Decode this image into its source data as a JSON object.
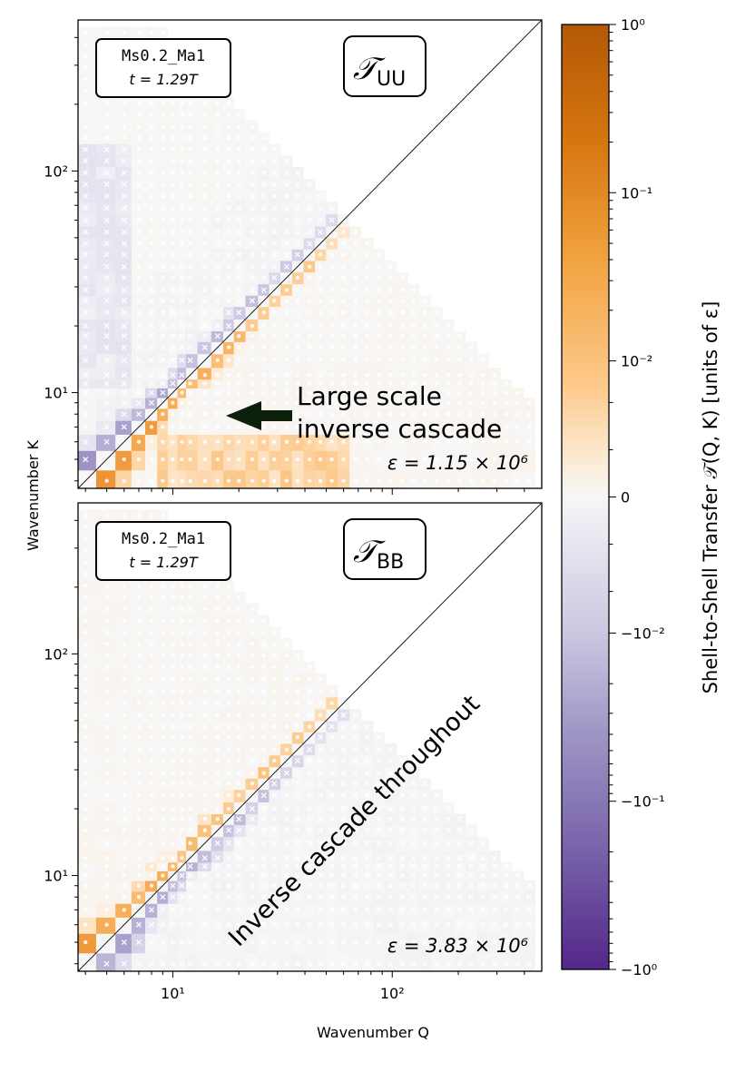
{
  "figure": {
    "colorbar_label": "Shell-to-Shell Transfer 𝒯(Q, K)  [units of ε]",
    "colorbar_ticks": [
      "10⁰",
      "10⁻¹",
      "10⁻²",
      "0",
      "−10⁻²",
      "−10⁻¹",
      "−10⁰"
    ],
    "colors": {
      "positive": "#b35806",
      "negative": "#542788",
      "neutral": "#f7f7f7"
    },
    "xlabel": "Wavenumber Q",
    "ylabel": "Wavenumber K"
  },
  "chart_data": [
    {
      "type": "heatmap",
      "title": "𝒯UU",
      "title_main": "𝒯",
      "title_sub": "UU",
      "info_sim": "Ms0.2_Ma1",
      "info_time": "t = 1.29T",
      "epsilon_label": "ε = 1.15 × 10⁶",
      "epsilon": 1150000,
      "annotation_line1": "Large scale",
      "annotation_line2": "inverse cascade",
      "xlabel": "",
      "ylabel": "Wavenumber K",
      "xscale": "log",
      "yscale": "log",
      "xlim": [
        3.7,
        480
      ],
      "ylim": [
        3.7,
        480
      ],
      "x_tick_labels": [
        "10¹",
        "10²"
      ],
      "y_tick_labels": [
        "10¹",
        "10²"
      ],
      "bins": [
        4,
        5,
        6,
        7,
        8,
        9,
        10,
        11,
        12,
        14,
        16,
        18,
        20,
        23,
        26,
        29,
        33,
        37,
        42,
        47,
        53,
        60,
        68,
        77,
        87,
        98,
        111,
        125,
        141,
        159,
        180,
        203,
        229,
        259,
        292,
        330,
        373,
        421
      ],
      "colorscale": "symlog, range [-1, 1] ε",
      "markers": "dot = positive transfer, cross = negative transfer",
      "structure": "positive transfer just below diagonal (K<Q), negative just above; strong large-scale inverse cascade for K≈5–10"
    },
    {
      "type": "heatmap",
      "title": "𝒯BB",
      "title_main": "𝒯",
      "title_sub": "BB",
      "info_sim": "Ms0.2_Ma1",
      "info_time": "t = 1.29T",
      "epsilon_label": "ε = 3.83 × 10⁶",
      "epsilon": 3830000,
      "annotation": "Inverse cascade throughout",
      "xlabel": "Wavenumber Q",
      "ylabel": "Wavenumber K",
      "xscale": "log",
      "yscale": "log",
      "xlim": [
        3.7,
        480
      ],
      "ylim": [
        3.7,
        480
      ],
      "x_tick_labels": [
        "10¹",
        "10²"
      ],
      "y_tick_labels": [
        "10¹",
        "10²"
      ],
      "bins": [
        4,
        5,
        6,
        7,
        8,
        9,
        10,
        11,
        12,
        14,
        16,
        18,
        20,
        23,
        26,
        29,
        33,
        37,
        42,
        47,
        53,
        60,
        68,
        77,
        87,
        98,
        111,
        125,
        141,
        159,
        180,
        203,
        229,
        259,
        292,
        330,
        373,
        421
      ],
      "colorscale": "symlog, range [-1, 1] ε",
      "markers": "dot = positive transfer, cross = negative transfer",
      "structure": "positive transfer above diagonal (K>Q), negative below; inverse cascade at all scales"
    }
  ]
}
